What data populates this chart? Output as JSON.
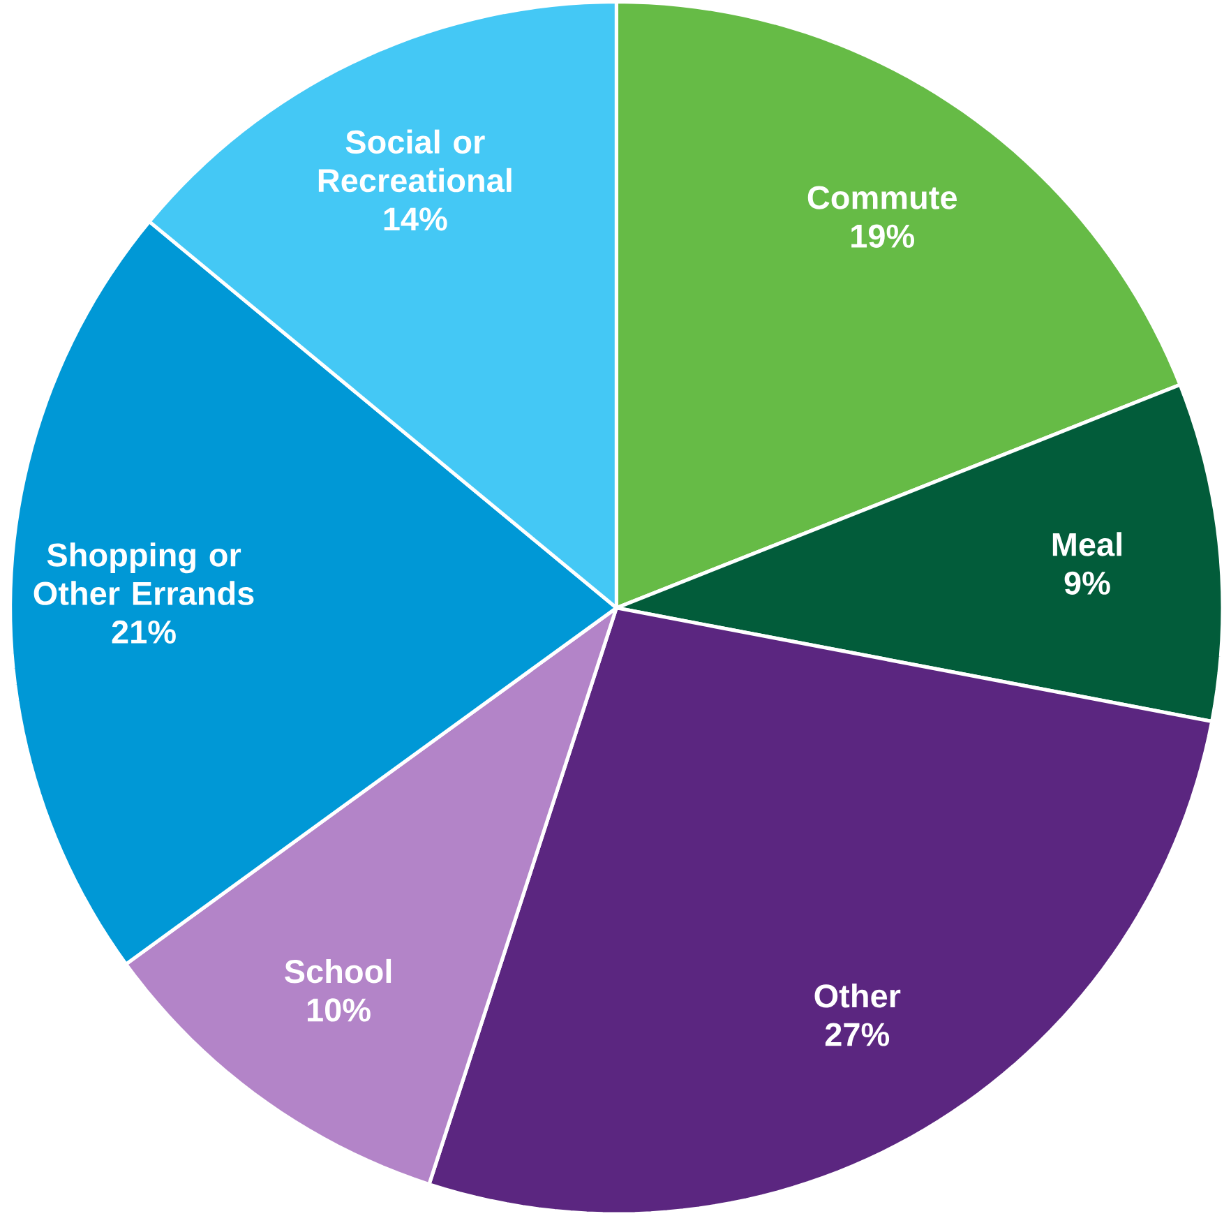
{
  "chart_data": {
    "type": "pie",
    "categories": [
      "Commute",
      "Meal",
      "Other",
      "School",
      "Shopping or Other Errands",
      "Social or Recreational"
    ],
    "values": [
      19,
      9,
      27,
      10,
      21,
      14
    ],
    "value_labels": [
      "19%",
      "9%",
      "27%",
      "10%",
      "21%",
      "14%"
    ],
    "colors": [
      "#66bb46",
      "#025c3a",
      "#5b2680",
      "#b384c8",
      "#0098d6",
      "#44c8f5"
    ]
  }
}
